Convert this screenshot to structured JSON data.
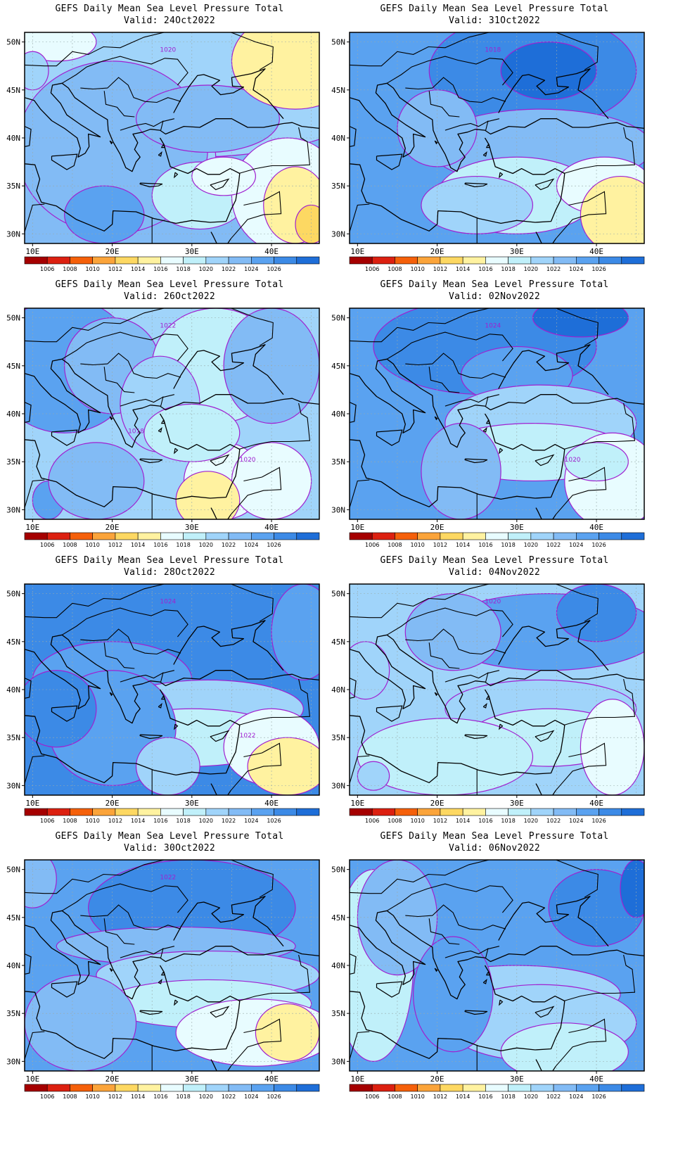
{
  "colorbar": {
    "colors": [
      "#a50000",
      "#dc2010",
      "#f5600a",
      "#fba43a",
      "#fdd862",
      "#fff2a0",
      "#e8fcff",
      "#c0f0fa",
      "#a0d4fa",
      "#82bbf5",
      "#5aa2f0",
      "#3c8ae6",
      "#1e6ed8"
    ],
    "labels": [
      "1006",
      "1008",
      "1010",
      "1012",
      "1014",
      "1016",
      "1018",
      "1020",
      "1022",
      "1024",
      "1026"
    ]
  },
  "axes": {
    "lat_labels": [
      "50N",
      "45N",
      "40N",
      "35N",
      "30N"
    ],
    "lon_labels": [
      "10E",
      "20E",
      "30E",
      "40E"
    ]
  },
  "panels": [
    {
      "title": "GEFS Daily Mean Sea Level Pressure Total",
      "valid": "Valid: 24Oct2022",
      "contour_labels": [
        "1020"
      ],
      "scheme": "d24"
    },
    {
      "title": "GEFS Daily Mean Sea Level Pressure Total",
      "valid": "Valid: 31Oct2022",
      "contour_labels": [
        "1018"
      ],
      "scheme": "d31"
    },
    {
      "title": "GEFS Daily Mean Sea Level Pressure Total",
      "valid": "Valid: 26Oct2022",
      "contour_labels": [
        "1022",
        "1020",
        "1018"
      ],
      "scheme": "d26"
    },
    {
      "title": "GEFS Daily Mean Sea Level Pressure Total",
      "valid": "Valid: 02Nov2022",
      "contour_labels": [
        "1024",
        "1020"
      ],
      "scheme": "d02"
    },
    {
      "title": "GEFS Daily Mean Sea Level Pressure Total",
      "valid": "Valid: 28Oct2022",
      "contour_labels": [
        "1024",
        "1022"
      ],
      "scheme": "d28"
    },
    {
      "title": "GEFS Daily Mean Sea Level Pressure Total",
      "valid": "Valid: 04Nov2022",
      "contour_labels": [
        "1020"
      ],
      "scheme": "d04"
    },
    {
      "title": "GEFS Daily Mean Sea Level Pressure Total",
      "valid": "Valid: 30Oct2022",
      "contour_labels": [
        "1022"
      ],
      "scheme": "d30"
    },
    {
      "title": "GEFS Daily Mean Sea Level Pressure Total",
      "valid": "Valid: 06Nov2022",
      "contour_labels": [],
      "scheme": "d06"
    }
  ]
}
